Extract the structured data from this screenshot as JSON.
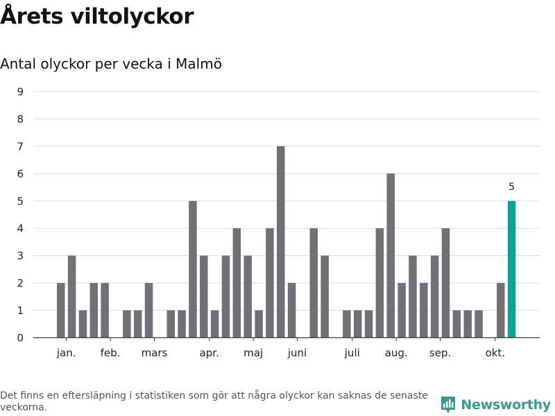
{
  "title": "Årets viltolyckor",
  "subtitle": "Antal olyckor per vecka i Malmö",
  "footnote": "Det finns en eftersläpning i statistiken som gör att några olyckor kan saknas de senaste veckorna.",
  "brand": {
    "name": "Newsworthy",
    "icon": "newsworthy-logo-icon",
    "color": "#3a9a8f"
  },
  "chart_data": {
    "type": "bar",
    "x": [
      1,
      2,
      3,
      4,
      5,
      6,
      7,
      8,
      9,
      10,
      11,
      12,
      13,
      14,
      15,
      16,
      17,
      18,
      19,
      20,
      21,
      22,
      23,
      24,
      25,
      26,
      27,
      28,
      29,
      30,
      31,
      32,
      33,
      34,
      35,
      36,
      37,
      38,
      39,
      40,
      41,
      42
    ],
    "values": [
      2,
      3,
      1,
      2,
      2,
      0,
      1,
      1,
      2,
      0,
      1,
      1,
      5,
      3,
      1,
      3,
      4,
      3,
      1,
      4,
      7,
      2,
      0,
      4,
      3,
      0,
      1,
      1,
      1,
      4,
      6,
      2,
      3,
      2,
      3,
      4,
      1,
      1,
      1,
      0,
      2,
      5
    ],
    "month_labels": [
      {
        "label": "jan.",
        "week": 1.5
      },
      {
        "label": "feb.",
        "week": 5.5
      },
      {
        "label": "mars",
        "week": 9.5
      },
      {
        "label": "apr.",
        "week": 14.5
      },
      {
        "label": "maj",
        "week": 18.5
      },
      {
        "label": "juni",
        "week": 22.5
      },
      {
        "label": "juli",
        "week": 27.5
      },
      {
        "label": "aug.",
        "week": 31.5
      },
      {
        "label": "sep.",
        "week": 35.5
      },
      {
        "label": "okt.",
        "week": 40.5
      }
    ],
    "ylim": [
      0,
      9
    ],
    "yticks": [
      0,
      1,
      2,
      3,
      4,
      5,
      6,
      7,
      8,
      9
    ],
    "grid": true,
    "bar_color": "#707075",
    "highlight_color": "#0aa399",
    "highlight_index": 41,
    "highlight_label": "5"
  }
}
